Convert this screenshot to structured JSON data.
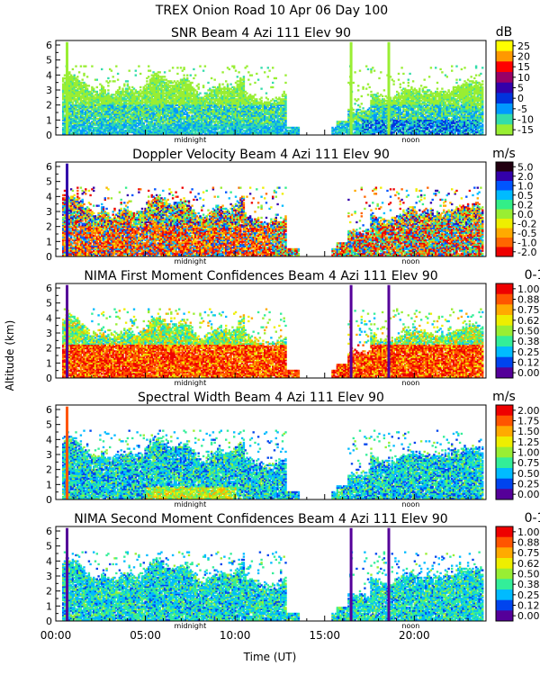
{
  "figure": {
    "suptitle": "TREX Onion Road  10 Apr 06 Day 100",
    "ylabel": "Altitude (km)",
    "xlabel": "Time (UT)",
    "x_ticks": [
      "00:00",
      "05:00",
      "10:00",
      "15:00",
      "20:00"
    ],
    "markers": [
      "midnight",
      "noon"
    ]
  },
  "chart_data": [
    {
      "type": "heatmap",
      "title": "SNR Beam 4 Azi 111 Elev 90",
      "unit": "dB",
      "x_range_hours": [
        0,
        24
      ],
      "y_range_km": [
        0,
        6.3
      ],
      "y_ticks": [
        "0",
        "1",
        "2",
        "3",
        "4",
        "5",
        "6"
      ],
      "colorbar_ticks": [
        "25",
        "20",
        "15",
        "10",
        "5",
        "0",
        "-5",
        "-10",
        "-15"
      ],
      "colors": [
        "#ffff00",
        "#ff9900",
        "#ff0000",
        "#990066",
        "#3300aa",
        "#0033dd",
        "#0099ff",
        "#33ddaa",
        "#99ee33"
      ],
      "pattern": "snr"
    },
    {
      "type": "heatmap",
      "title": "Doppler Velocity Beam 4 Azi 111 Elev 90",
      "unit": "m/s",
      "x_range_hours": [
        0,
        24
      ],
      "y_range_km": [
        0,
        6.3
      ],
      "y_ticks": [
        "0",
        "1",
        "2",
        "3",
        "4",
        "5",
        "6"
      ],
      "colorbar_ticks": [
        "5.0",
        "2.0",
        "1.0",
        "0.5",
        "0.2",
        "0.0",
        "-0.2",
        "-0.5",
        "-1.0",
        "-2.0"
      ],
      "colors": [
        "#220011",
        "#3300aa",
        "#0055ff",
        "#00bbff",
        "#33ee88",
        "#99ee33",
        "#eeee00",
        "#ffaa00",
        "#ff6600",
        "#ee0000"
      ],
      "pattern": "vel"
    },
    {
      "type": "heatmap",
      "title": "NIMA First Moment Confidences Beam 4 Azi 111 Elev 90",
      "unit": "0-1",
      "x_range_hours": [
        0,
        24
      ],
      "y_range_km": [
        0,
        6.3
      ],
      "y_ticks": [
        "0",
        "1",
        "2",
        "3",
        "4",
        "5",
        "6"
      ],
      "colorbar_ticks": [
        "1.00",
        "0.88",
        "0.75",
        "0.62",
        "0.50",
        "0.38",
        "0.25",
        "0.12",
        "0.00"
      ],
      "colors": [
        "#ee0000",
        "#ff5500",
        "#ffaa00",
        "#eeee00",
        "#99ee33",
        "#33ee99",
        "#00bbff",
        "#0044ee",
        "#550099"
      ],
      "pattern": "conf1"
    },
    {
      "type": "heatmap",
      "title": "Spectral Width Beam 4 Azi 111 Elev 90",
      "unit": "m/s",
      "x_range_hours": [
        0,
        24
      ],
      "y_range_km": [
        0,
        6.3
      ],
      "y_ticks": [
        "0",
        "1",
        "2",
        "3",
        "4",
        "5",
        "6"
      ],
      "colorbar_ticks": [
        "2.00",
        "1.75",
        "1.50",
        "1.25",
        "1.00",
        "0.75",
        "0.50",
        "0.25",
        "0.00"
      ],
      "colors": [
        "#ee0000",
        "#ff5500",
        "#ffaa00",
        "#eeee00",
        "#99ee33",
        "#33ee99",
        "#00bbff",
        "#0044ee",
        "#550099"
      ],
      "pattern": "sw"
    },
    {
      "type": "heatmap",
      "title": "NIMA Second Moment Confidences Beam 4 Azi 111 Elev 90",
      "unit": "0-1",
      "x_range_hours": [
        0,
        24
      ],
      "y_range_km": [
        0,
        6.3
      ],
      "y_ticks": [
        "0",
        "1",
        "2",
        "3",
        "4",
        "5",
        "6"
      ],
      "colorbar_ticks": [
        "1.00",
        "0.88",
        "0.75",
        "0.62",
        "0.50",
        "0.38",
        "0.25",
        "0.12",
        "0.00"
      ],
      "colors": [
        "#ee0000",
        "#ff5500",
        "#ffaa00",
        "#eeee00",
        "#99ee33",
        "#33ee99",
        "#00bbff",
        "#0044ee",
        "#550099"
      ],
      "pattern": "conf2"
    }
  ]
}
